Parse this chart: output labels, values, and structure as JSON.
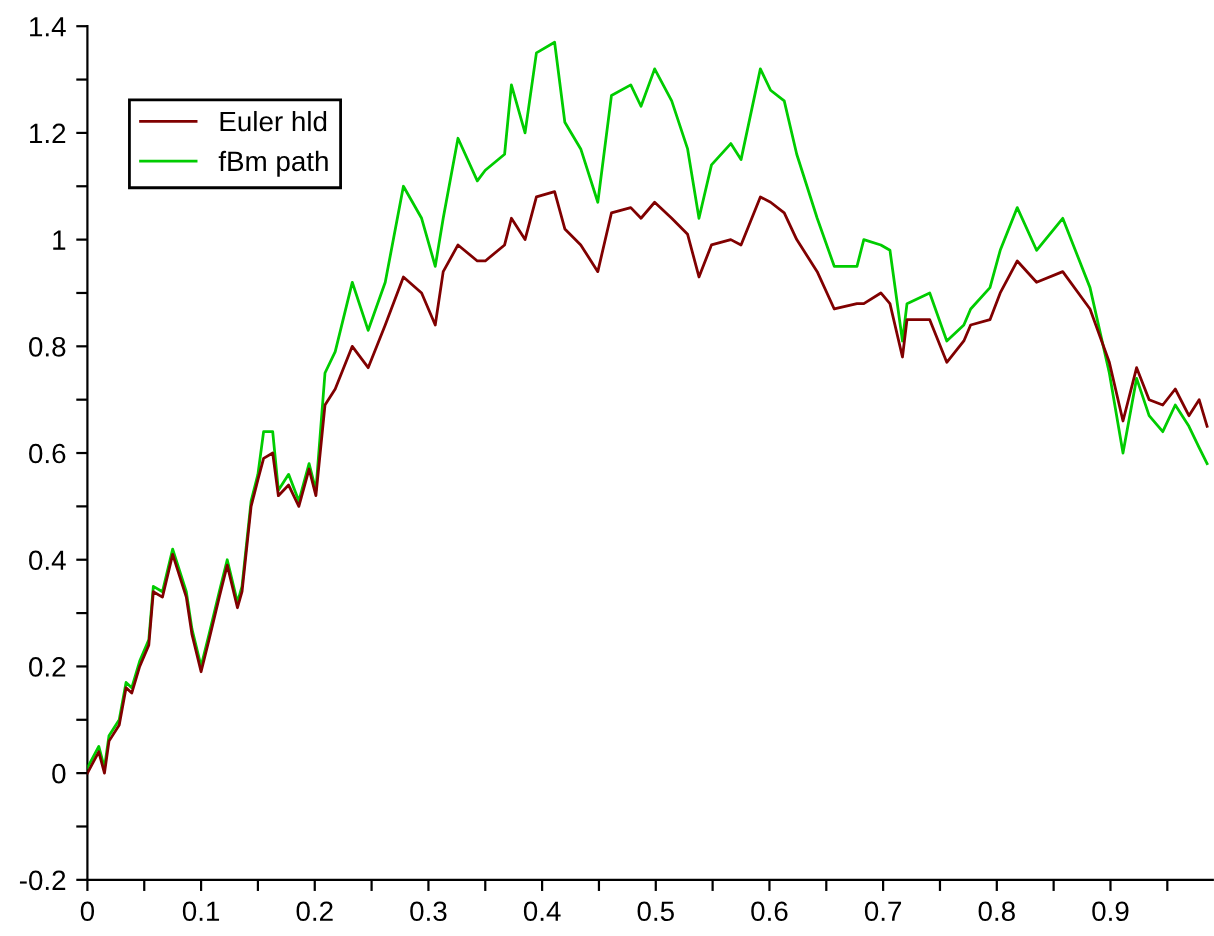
{
  "chart_data": {
    "type": "line",
    "legend": "top left",
    "grid": false,
    "marker": "none",
    "line_style": "solid",
    "xlim": [
      0,
      0.99
    ],
    "ylim": [
      -0.2,
      1.4
    ],
    "xticks": [
      0,
      {
        "value": 0.05,
        "label": null
      },
      0.1,
      {
        "value": 0.15,
        "label": null
      },
      0.2,
      {
        "value": 0.25,
        "label": null
      },
      0.3,
      {
        "value": 0.35,
        "label": null
      },
      0.4,
      {
        "value": 0.45,
        "label": null
      },
      0.5,
      {
        "value": 0.55,
        "label": null
      },
      0.6,
      {
        "value": 0.65,
        "label": null
      },
      0.7,
      {
        "value": 0.75,
        "label": null
      },
      0.8,
      {
        "value": 0.85,
        "label": null
      },
      0.9,
      {
        "value": 0.95,
        "label": null
      }
    ],
    "yticks": [
      -0.2,
      {
        "value": -0.1,
        "label": null
      },
      0,
      {
        "value": 0.1,
        "label": null
      },
      0.2,
      {
        "value": 0.3,
        "label": null
      },
      0.4,
      {
        "value": 0.5,
        "label": null
      },
      0.6,
      {
        "value": 0.7,
        "label": null
      },
      0.8,
      {
        "value": 0.9,
        "label": null
      },
      1,
      {
        "value": 1.1,
        "label": null
      },
      1.2,
      {
        "value": 1.3,
        "label": null
      },
      1.4
    ],
    "x": [
      0,
      0.01,
      0.015,
      0.019,
      0.028,
      0.034,
      0.039,
      0.046,
      0.054,
      0.058,
      0.066,
      0.075,
      0.087,
      0.092,
      0.1,
      0.107,
      0.116,
      0.123,
      0.132,
      0.136,
      0.144,
      0.15,
      0.155,
      0.163,
      0.168,
      0.177,
      0.186,
      0.195,
      0.201,
      0.209,
      0.218,
      0.233,
      0.247,
      0.262,
      0.278,
      0.294,
      0.306,
      0.313,
      0.326,
      0.343,
      0.35,
      0.367,
      0.373,
      0.385,
      0.395,
      0.411,
      0.42,
      0.434,
      0.449,
      0.461,
      0.478,
      0.487,
      0.499,
      0.514,
      0.528,
      0.538,
      0.549,
      0.566,
      0.575,
      0.592,
      0.601,
      0.613,
      0.624,
      0.642,
      0.657,
      0.677,
      0.683,
      0.698,
      0.706,
      0.717,
      0.721,
      0.741,
      0.756,
      0.771,
      0.777,
      0.794,
      0.803,
      0.818,
      0.835,
      0.858,
      0.882,
      0.899,
      0.911,
      0.923,
      0.934,
      0.946,
      0.957,
      0.969,
      0.978,
      0.985
    ],
    "series": [
      {
        "name": "Euler hld",
        "color": "#800000",
        "values": [
          0,
          0.04,
          0,
          0.06,
          0.09,
          0.16,
          0.15,
          0.2,
          0.24,
          0.34,
          0.33,
          0.41,
          0.33,
          0.26,
          0.19,
          0.25,
          0.33,
          0.39,
          0.31,
          0.34,
          0.5,
          0.55,
          0.59,
          0.6,
          0.52,
          0.54,
          0.5,
          0.57,
          0.52,
          0.69,
          0.72,
          0.8,
          0.76,
          0.84,
          0.93,
          0.9,
          0.84,
          0.94,
          0.99,
          0.96,
          0.96,
          0.99,
          1.04,
          1.0,
          1.08,
          1.09,
          1.02,
          0.99,
          0.94,
          1.05,
          1.06,
          1.04,
          1.07,
          1.04,
          1.01,
          0.93,
          0.99,
          1.0,
          0.99,
          1.08,
          1.07,
          1.05,
          1.0,
          0.94,
          0.87,
          0.88,
          0.88,
          0.9,
          0.88,
          0.78,
          0.85,
          0.85,
          0.77,
          0.81,
          0.84,
          0.85,
          0.9,
          0.96,
          0.92,
          0.94,
          0.87,
          0.77,
          0.66,
          0.76,
          0.7,
          0.69,
          0.72,
          0.67,
          0.7,
          0.65
        ]
      },
      {
        "name": "fBm path",
        "color": "#00cc00",
        "values": [
          0.01,
          0.05,
          0.01,
          0.07,
          0.1,
          0.17,
          0.16,
          0.21,
          0.25,
          0.35,
          0.34,
          0.42,
          0.34,
          0.27,
          0.2,
          0.26,
          0.34,
          0.4,
          0.32,
          0.35,
          0.51,
          0.56,
          0.64,
          0.64,
          0.53,
          0.56,
          0.51,
          0.58,
          0.53,
          0.75,
          0.79,
          0.92,
          0.83,
          0.92,
          1.1,
          1.04,
          0.95,
          1.04,
          1.19,
          1.11,
          1.13,
          1.16,
          1.29,
          1.2,
          1.35,
          1.37,
          1.22,
          1.17,
          1.07,
          1.27,
          1.29,
          1.25,
          1.32,
          1.26,
          1.17,
          1.04,
          1.14,
          1.18,
          1.15,
          1.32,
          1.28,
          1.26,
          1.16,
          1.04,
          0.95,
          0.95,
          1.0,
          0.99,
          0.98,
          0.81,
          0.88,
          0.9,
          0.81,
          0.84,
          0.87,
          0.91,
          0.98,
          1.06,
          0.98,
          1.04,
          0.91,
          0.75,
          0.6,
          0.74,
          0.67,
          0.64,
          0.69,
          0.65,
          0.61,
          0.58
        ]
      }
    ]
  }
}
